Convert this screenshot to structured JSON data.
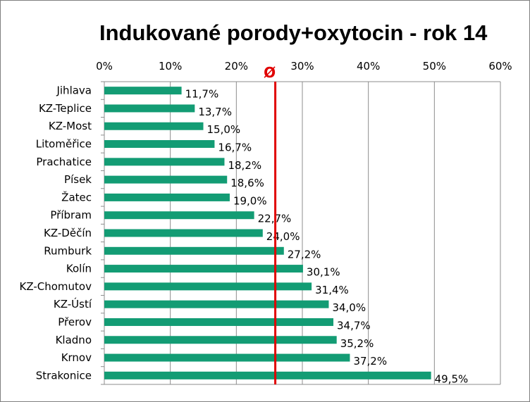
{
  "chart_data": {
    "type": "bar",
    "orientation": "horizontal",
    "title": "Indukované porody+oxytocin - rok 14",
    "categories": [
      "Jihlava",
      "KZ-Teplice",
      "KZ-Most",
      "Litoměřice",
      "Prachatice",
      "Písek",
      "Žatec",
      "Příbram",
      "KZ-Děčín",
      "Rumburk",
      "Kolín",
      "KZ-Chomutov",
      "KZ-Ústí",
      "Přerov",
      "Kladno",
      "Krnov",
      "Strakonice"
    ],
    "values": [
      11.7,
      13.7,
      15.0,
      16.7,
      18.2,
      18.6,
      19.0,
      22.7,
      24.0,
      27.2,
      30.1,
      31.4,
      34.0,
      34.7,
      35.2,
      37.2,
      49.5
    ],
    "data_labels": [
      "11,7%",
      "13,7%",
      "15,0%",
      "16,7%",
      "18,2%",
      "18,6%",
      "19,0%",
      "22,7%",
      "24,0%",
      "27,2%",
      "30,1%",
      "31,4%",
      "34,0%",
      "34,7%",
      "35,2%",
      "37,2%",
      "49,5%"
    ],
    "x_ticks": [
      0,
      10,
      20,
      30,
      40,
      50,
      60
    ],
    "x_tick_labels": [
      "0%",
      "10%",
      "20%",
      "30%",
      "40%",
      "50%",
      "60%"
    ],
    "xlim": [
      0,
      60
    ],
    "x_axis_position": "top",
    "grid": true,
    "bar_color": "#139C74",
    "average_line": {
      "value": 25.9,
      "label": "Ø",
      "color": "#E00000"
    }
  }
}
